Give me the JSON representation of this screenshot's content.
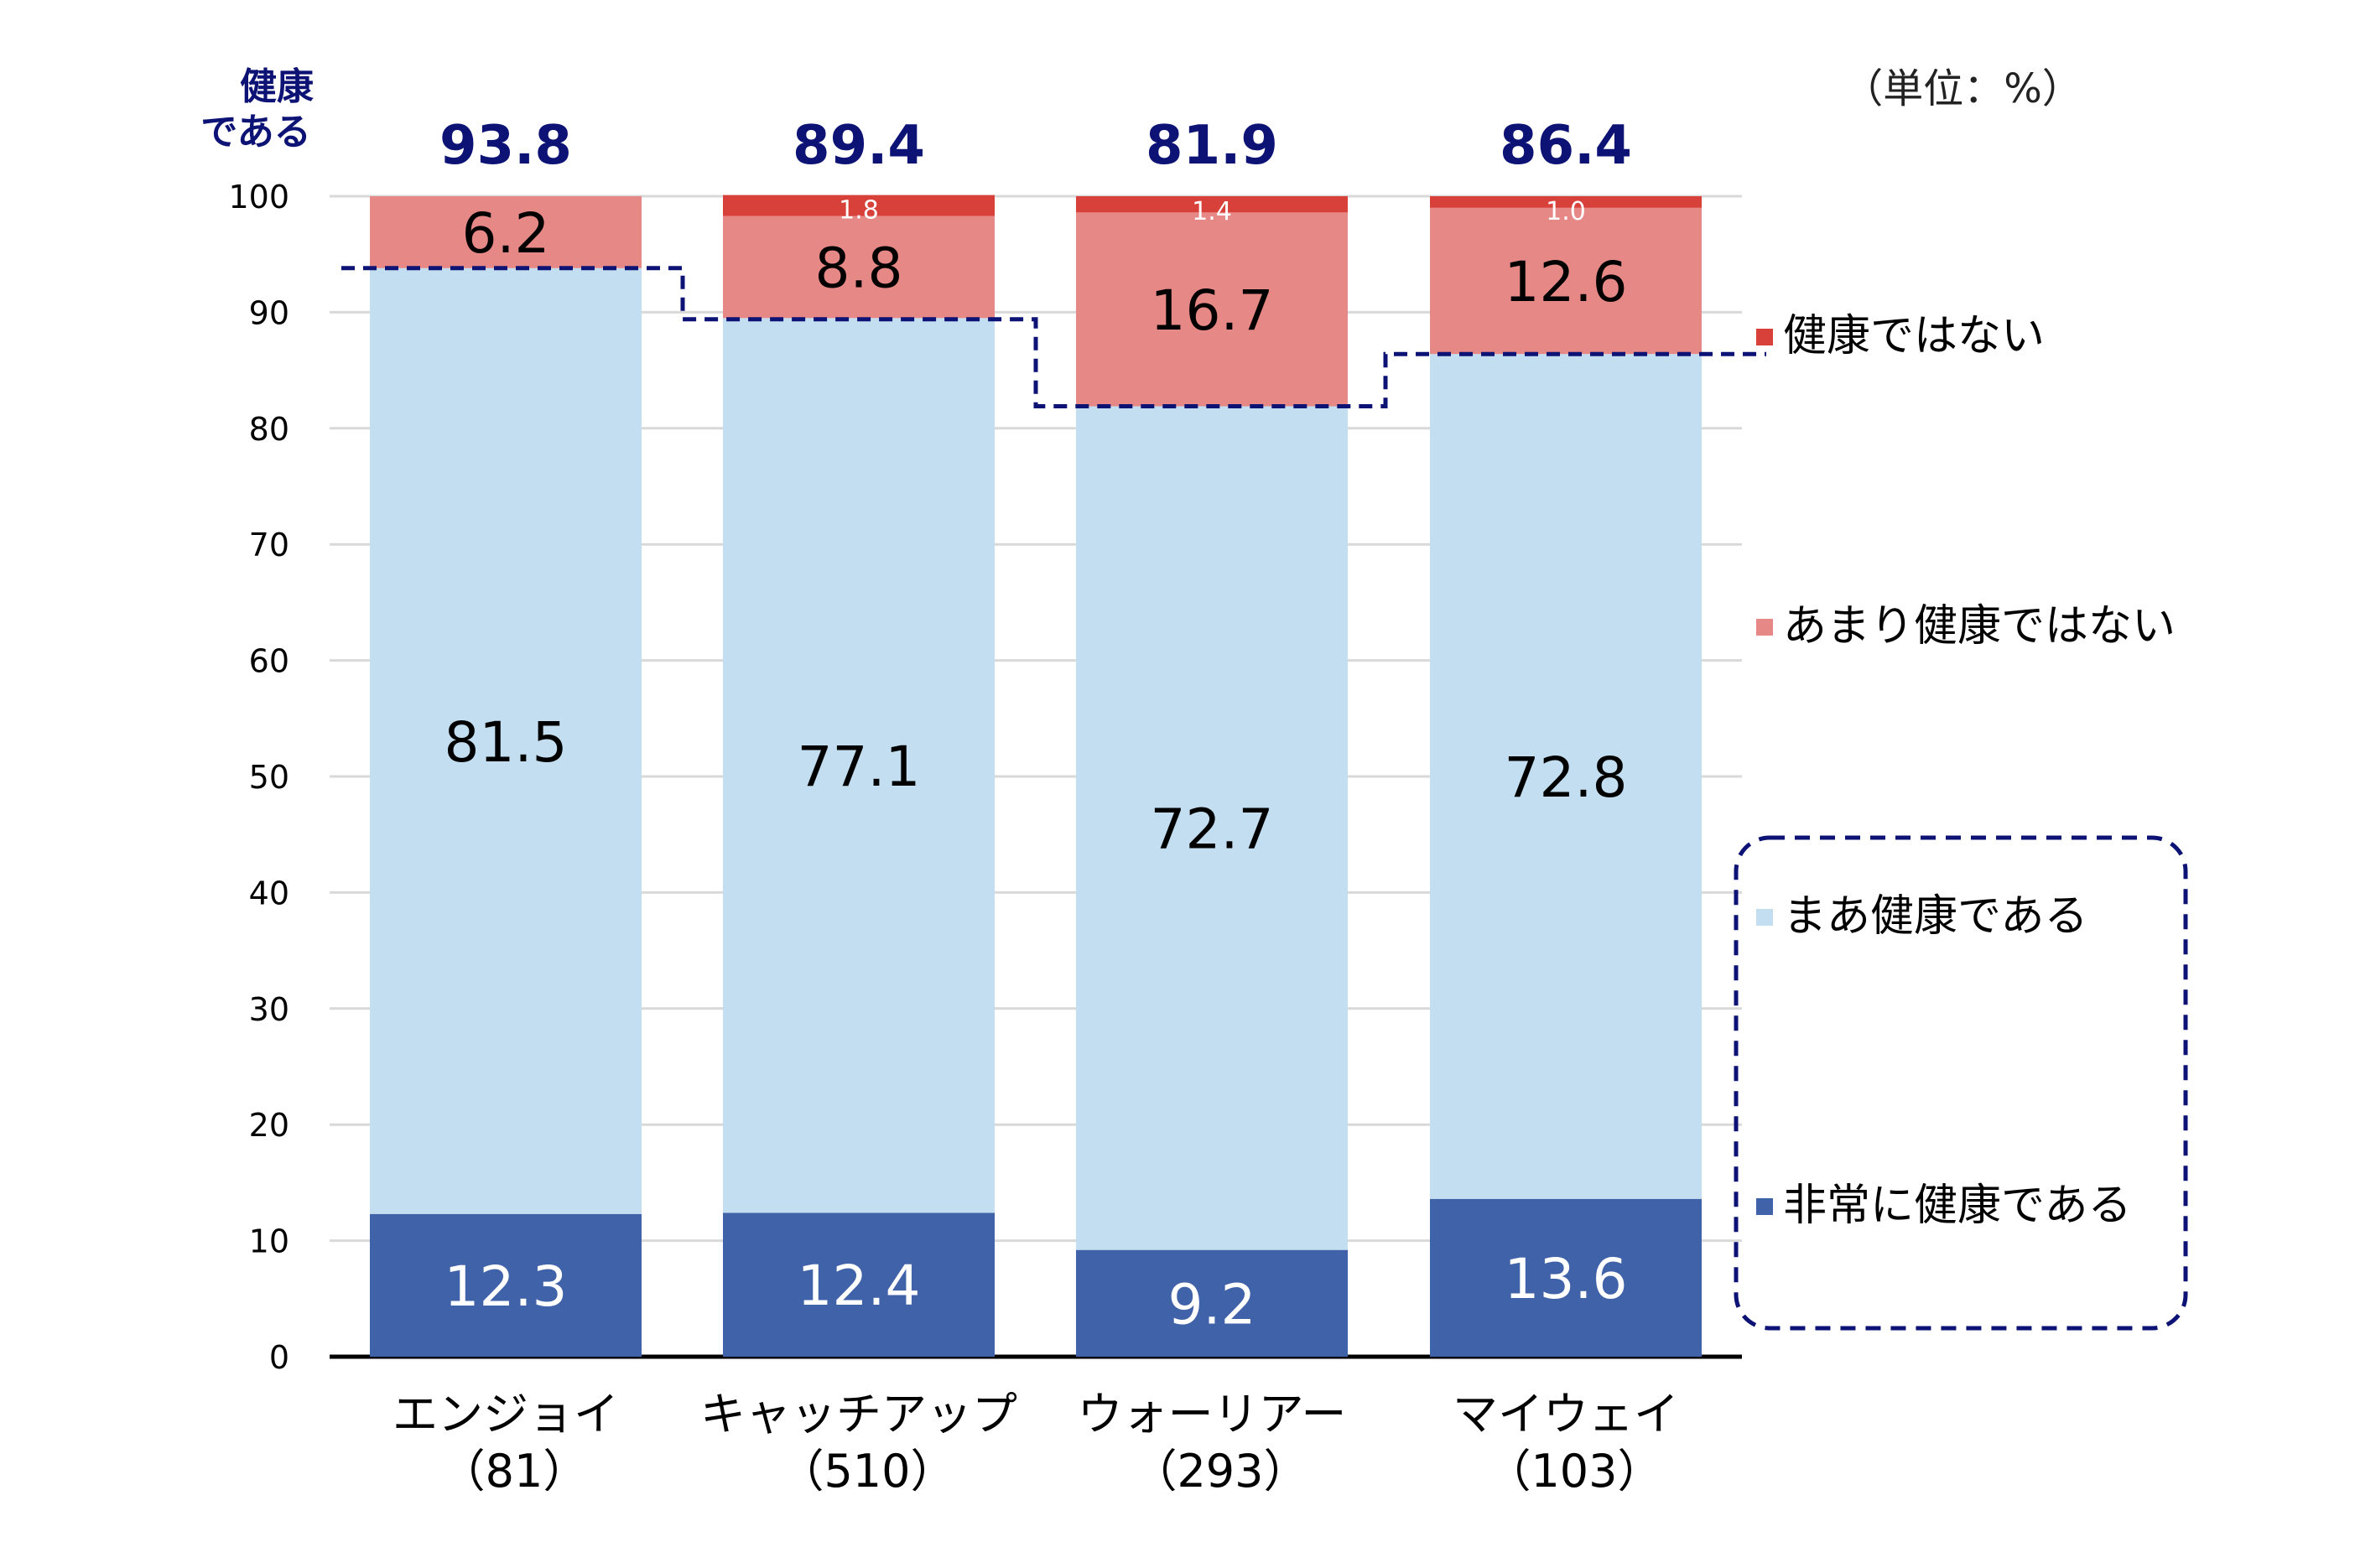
{
  "chart_data": {
    "type": "bar",
    "stacked": true,
    "unit_label": "（単位：%）",
    "ylabel": "健康である",
    "ylabel_lines": [
      "健康",
      "である"
    ],
    "ylim": [
      0,
      100
    ],
    "yticks": [
      0,
      10,
      20,
      30,
      40,
      50,
      60,
      70,
      80,
      90,
      100
    ],
    "grid": true,
    "categories": [
      "エンジョイ",
      "キャッチアップ",
      "ウォーリアー",
      "マイウェイ"
    ],
    "category_counts": [
      "（81）",
      "（510）",
      "（293）",
      "（103）"
    ],
    "series": [
      {
        "name": "非常に健康である",
        "color": "#4062A8",
        "label_color": "#ffffff",
        "values": [
          12.3,
          12.4,
          9.2,
          13.6
        ]
      },
      {
        "name": "まあ健康である",
        "color": "#C2DEF0",
        "label_color": "#000000",
        "values": [
          81.5,
          77.1,
          72.7,
          72.8
        ]
      },
      {
        "name": "あまり健康ではない",
        "color": "#E68886",
        "label_color": "#000000",
        "values": [
          6.2,
          8.8,
          16.7,
          12.6
        ]
      },
      {
        "name": "健康ではない",
        "color": "#D8403A",
        "label_color": "#ffffff",
        "values": [
          null,
          1.8,
          1.4,
          1.0
        ]
      }
    ],
    "healthy_totals": [
      "93.8",
      "89.4",
      "81.9",
      "86.4"
    ],
    "healthy_total_values": [
      93.8,
      89.4,
      81.9,
      86.4
    ],
    "legend": [
      "健康ではない",
      "あまり健康ではない",
      "まあ健康である",
      "非常に健康である"
    ],
    "legend_placement": "right",
    "accent_color": "#0D1275"
  }
}
